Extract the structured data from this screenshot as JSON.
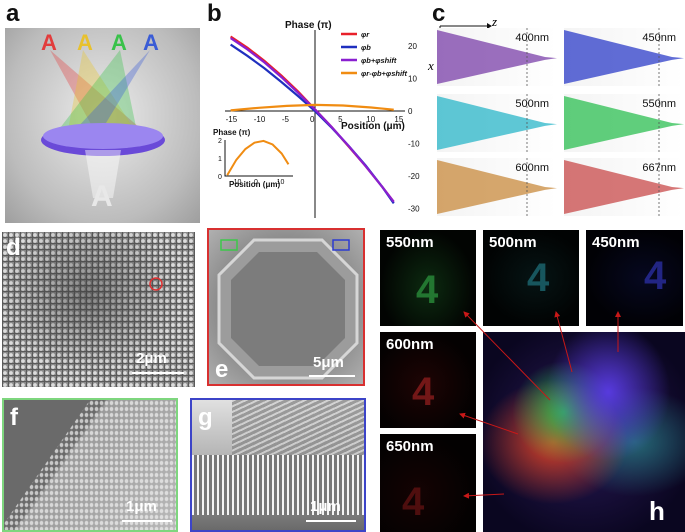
{
  "panels": {
    "a": "a",
    "b": "b",
    "c": "c",
    "d": "d",
    "e": "e",
    "f": "f",
    "g": "g",
    "h": "h"
  },
  "panel_a": {
    "letters": [
      "A",
      "A",
      "A",
      "A"
    ],
    "letter_colors": [
      "#e23c3c",
      "#e8c12e",
      "#39c24a",
      "#3a5cd6"
    ],
    "image_letter": "A"
  },
  "panel_b": {
    "ylabel": "Phase (π)",
    "xlabel": "Position (μm)",
    "xticks": [
      "-15",
      "-10",
      "-5",
      "0",
      "5",
      "10",
      "15"
    ],
    "yticks": [
      "20",
      "10",
      "0",
      "-10",
      "-20",
      "-30"
    ],
    "legend": [
      {
        "label": "φr",
        "color": "#e8202a"
      },
      {
        "label": "φb",
        "color": "#1f2fbf"
      },
      {
        "label": "φb+φshift",
        "color": "#8a1fd0"
      },
      {
        "label": "φr-φb+φshift",
        "color": "#f08c12"
      }
    ],
    "inset": {
      "ylabel": "Phase (π)",
      "xlabel": "Position (μm)",
      "xticks": [
        "-10",
        "0",
        "10"
      ],
      "yticks": [
        "2",
        "1",
        "0"
      ]
    }
  },
  "chart_data": {
    "type": "line",
    "xlabel": "Position (μm)",
    "ylabel": "Phase (π)",
    "xlim": [
      -16,
      16
    ],
    "ylim": [
      -33,
      25
    ],
    "series": [
      {
        "name": "φr",
        "color": "#e8202a",
        "x": [
          -15,
          -12,
          -9,
          -6,
          -3,
          0,
          3,
          6,
          9,
          12,
          14
        ],
        "y": [
          23,
          19.5,
          15.5,
          11,
          6,
          0.5,
          -5,
          -11,
          -17,
          -23.5,
          -28
        ]
      },
      {
        "name": "φb",
        "color": "#1f2fbf",
        "x": [
          -15,
          -12,
          -9,
          -6,
          -3,
          0,
          3,
          6,
          9,
          12,
          14
        ],
        "y": [
          20.5,
          17,
          13.2,
          9,
          4.6,
          0,
          -5.2,
          -10.8,
          -16.8,
          -23.5,
          -28.5
        ]
      },
      {
        "name": "φb+φshift",
        "color": "#8a1fd0",
        "x": [
          -15,
          -12,
          -9,
          -6,
          -3,
          0,
          3,
          6,
          9,
          12,
          14
        ],
        "y": [
          22.5,
          19,
          15,
          10.5,
          5.6,
          0.5,
          -5,
          -10.8,
          -17,
          -23.5,
          -28
        ]
      },
      {
        "name": "φr-φb+φshift",
        "color": "#f08c12",
        "x": [
          -15,
          -10,
          -5,
          0,
          5,
          10,
          14
        ],
        "y": [
          0.2,
          1,
          1.6,
          1.9,
          1.7,
          1.1,
          0.4
        ]
      }
    ],
    "inset": {
      "name": "φr-φb+φshift",
      "color": "#f08c12",
      "xlim": [
        -15,
        15
      ],
      "ylim": [
        0,
        2
      ],
      "x": [
        -14,
        -10,
        -6,
        -2,
        2,
        6,
        10,
        13
      ],
      "y": [
        0.05,
        0.9,
        1.5,
        1.85,
        1.95,
        1.75,
        1.25,
        0.65
      ]
    }
  },
  "panel_c": {
    "axis_z": "z",
    "axis_x": "x",
    "wavelengths": [
      "400nm",
      "450nm",
      "500nm",
      "550nm",
      "600nm",
      "667nm"
    ],
    "colors": [
      "#7a3fa8",
      "#2c3cc8",
      "#2ab5c8",
      "#2cbf52",
      "#c88a3c",
      "#c84a4a"
    ]
  },
  "panel_d": {
    "scale": "2μm"
  },
  "panel_e": {
    "scale": "5μm"
  },
  "panel_f": {
    "scale": "1μm"
  },
  "panel_g": {
    "scale": "1μm"
  },
  "panel_h": {
    "labels": [
      "550nm",
      "500nm",
      "450nm",
      "600nm",
      "650nm"
    ],
    "glyph": "4"
  }
}
